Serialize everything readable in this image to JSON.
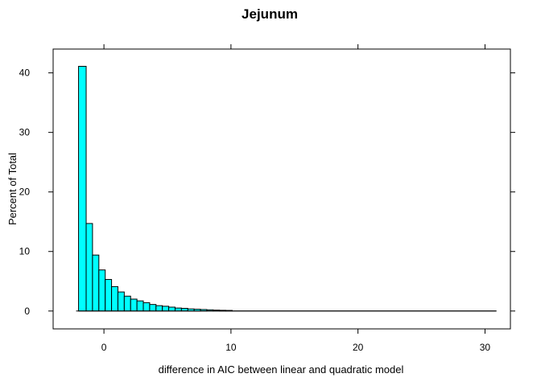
{
  "chart_data": {
    "type": "bar",
    "title": "Jejunum",
    "xlabel": "difference in AIC between linear and quadratic model",
    "ylabel": "Percent of Total",
    "xlim": [
      -4,
      32
    ],
    "ylim": [
      -3,
      44
    ],
    "xticks": [
      0,
      10,
      20,
      30
    ],
    "yticks": [
      0,
      10,
      20,
      30,
      40
    ],
    "grid": false,
    "legend": "none",
    "bar_color": "#00FFFF",
    "edge_color": "#000000",
    "bins": [
      {
        "x0": -2.0,
        "x1": -1.4,
        "value": 41.1
      },
      {
        "x0": -1.4,
        "x1": -0.9,
        "value": 14.7
      },
      {
        "x0": -0.9,
        "x1": -0.4,
        "value": 9.4
      },
      {
        "x0": -0.4,
        "x1": 0.1,
        "value": 6.9
      },
      {
        "x0": 0.1,
        "x1": 0.6,
        "value": 5.3
      },
      {
        "x0": 0.6,
        "x1": 1.1,
        "value": 4.1
      },
      {
        "x0": 1.1,
        "x1": 1.6,
        "value": 3.2
      },
      {
        "x0": 1.6,
        "x1": 2.1,
        "value": 2.5
      },
      {
        "x0": 2.1,
        "x1": 2.6,
        "value": 2.0
      },
      {
        "x0": 2.6,
        "x1": 3.1,
        "value": 1.7
      },
      {
        "x0": 3.1,
        "x1": 3.6,
        "value": 1.4
      },
      {
        "x0": 3.6,
        "x1": 4.1,
        "value": 1.1
      },
      {
        "x0": 4.1,
        "x1": 4.6,
        "value": 0.9
      },
      {
        "x0": 4.6,
        "x1": 5.1,
        "value": 0.8
      },
      {
        "x0": 5.1,
        "x1": 5.6,
        "value": 0.65
      },
      {
        "x0": 5.6,
        "x1": 6.1,
        "value": 0.5
      },
      {
        "x0": 6.1,
        "x1": 6.6,
        "value": 0.45
      },
      {
        "x0": 6.6,
        "x1": 7.1,
        "value": 0.35
      },
      {
        "x0": 7.1,
        "x1": 7.6,
        "value": 0.3
      },
      {
        "x0": 7.6,
        "x1": 8.1,
        "value": 0.25
      },
      {
        "x0": 8.1,
        "x1": 8.6,
        "value": 0.2
      },
      {
        "x0": 8.6,
        "x1": 9.1,
        "value": 0.15
      },
      {
        "x0": 9.1,
        "x1": 9.6,
        "value": 0.12
      },
      {
        "x0": 9.6,
        "x1": 10.1,
        "value": 0.1
      },
      {
        "x0": 10.1,
        "x1": 30.9,
        "value": 0.0
      }
    ]
  }
}
